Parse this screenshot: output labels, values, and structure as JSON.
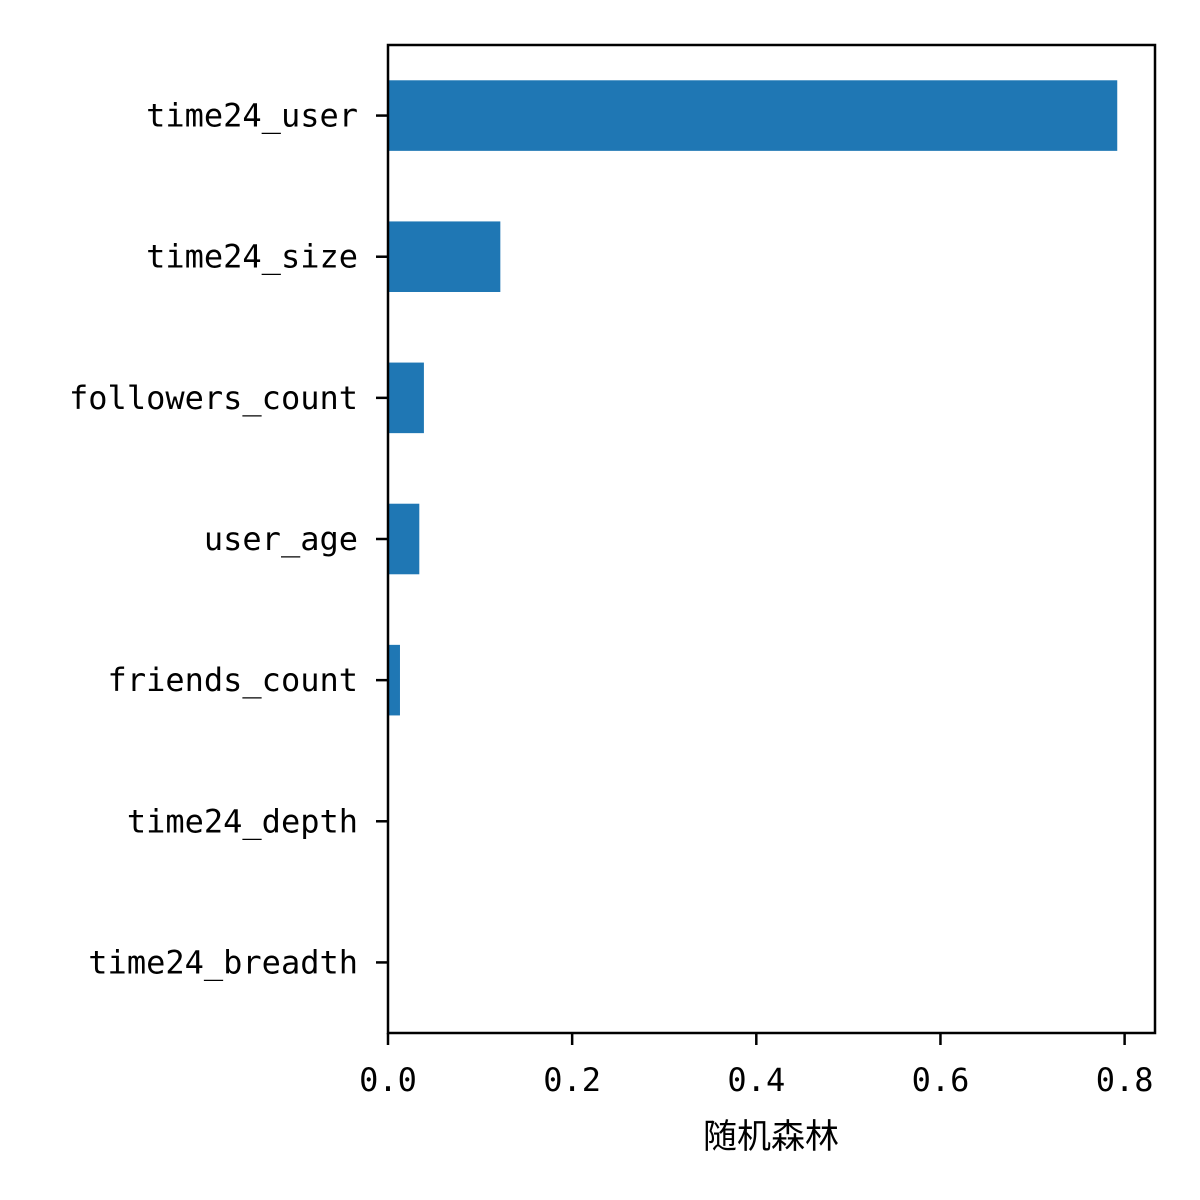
{
  "chart_data": {
    "type": "bar",
    "orientation": "horizontal",
    "categories": [
      "time24_user",
      "time24_size",
      "followers_count",
      "user_age",
      "friends_count",
      "time24_depth",
      "time24_breadth"
    ],
    "values": [
      0.792,
      0.122,
      0.039,
      0.034,
      0.013,
      0.0,
      0.0
    ],
    "xlabel": "随机森林",
    "ylabel": "",
    "xlim": [
      0.0,
      0.833
    ],
    "xticks": [
      0.0,
      0.2,
      0.4,
      0.6,
      0.8
    ],
    "xtick_labels": [
      "0.0",
      "0.2",
      "0.4",
      "0.6",
      "0.8"
    ],
    "bar_color": "#1f77b4",
    "grid": false,
    "legend": "none"
  }
}
